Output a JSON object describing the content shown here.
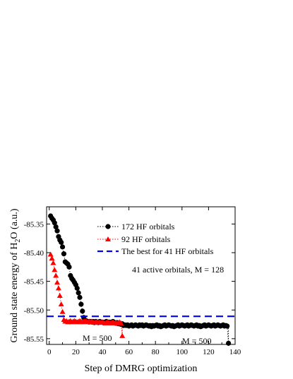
{
  "chart_data": {
    "type": "scatter",
    "xlabel": "Step of DMRG optimization",
    "ylabel_prefix": "Ground state energy of H",
    "ylabel_sub": "2",
    "ylabel_suffix": "O (a.u.)",
    "xlim": [
      -2,
      140
    ],
    "ylim": [
      -85.56,
      -85.32
    ],
    "xticks": [
      0,
      20,
      40,
      60,
      80,
      100,
      120,
      140
    ],
    "yticks": [
      -85.35,
      -85.4,
      -85.45,
      -85.5,
      -85.55
    ],
    "ytick_labels": [
      "-85.35",
      "-85.40",
      "-85.45",
      "-85.50",
      "-85.55"
    ],
    "series": [
      {
        "name": "172 HF orbitals",
        "marker": "circle",
        "color": "#000000",
        "x": [
          1,
          2,
          3,
          4,
          5,
          6,
          7,
          8,
          9,
          10,
          11,
          12,
          13,
          14,
          15,
          16,
          17,
          18,
          19,
          20,
          21,
          22,
          23,
          24,
          25,
          26,
          27,
          28,
          29,
          30,
          31,
          32,
          33,
          34,
          35,
          36,
          37,
          38,
          39,
          40,
          41,
          42,
          43,
          44,
          45,
          46,
          47,
          48,
          49,
          50,
          51,
          52,
          53,
          54,
          55,
          56,
          57,
          58,
          59,
          60,
          61,
          62,
          63,
          64,
          65,
          66,
          67,
          68,
          69,
          70,
          71,
          72,
          73,
          74,
          75,
          76,
          77,
          78,
          79,
          80,
          81,
          82,
          83,
          84,
          85,
          86,
          87,
          88,
          89,
          90,
          91,
          92,
          93,
          94,
          95,
          96,
          97,
          98,
          99,
          100,
          101,
          102,
          103,
          104,
          105,
          106,
          107,
          108,
          109,
          110,
          111,
          112,
          113,
          114,
          115,
          116,
          117,
          118,
          119,
          120,
          121,
          122,
          123,
          124,
          125,
          126,
          127,
          128,
          129,
          130,
          131,
          132,
          133,
          134,
          135
        ],
        "y": [
          -85.336,
          -85.34,
          -85.343,
          -85.348,
          -85.355,
          -85.362,
          -85.372,
          -85.378,
          -85.382,
          -85.39,
          -85.402,
          -85.416,
          -85.418,
          -85.42,
          -85.425,
          -85.44,
          -85.445,
          -85.448,
          -85.452,
          -85.456,
          -85.462,
          -85.47,
          -85.478,
          -85.49,
          -85.502,
          -85.513,
          -85.518,
          -85.519,
          -85.52,
          -85.521,
          -85.52,
          -85.521,
          -85.52,
          -85.522,
          -85.52,
          -85.521,
          -85.522,
          -85.52,
          -85.521,
          -85.521,
          -85.522,
          -85.521,
          -85.52,
          -85.522,
          -85.521,
          -85.522,
          -85.521,
          -85.52,
          -85.522,
          -85.523,
          -85.522,
          -85.524,
          -85.523,
          -85.525,
          -85.524,
          -85.527,
          -85.526,
          -85.527,
          -85.526,
          -85.528,
          -85.527,
          -85.526,
          -85.528,
          -85.527,
          -85.526,
          -85.527,
          -85.528,
          -85.526,
          -85.527,
          -85.526,
          -85.528,
          -85.527,
          -85.526,
          -85.527,
          -85.528,
          -85.527,
          -85.529,
          -85.527,
          -85.528,
          -85.527,
          -85.526,
          -85.528,
          -85.527,
          -85.529,
          -85.528,
          -85.527,
          -85.526,
          -85.528,
          -85.527,
          -85.526,
          -85.527,
          -85.528,
          -85.527,
          -85.529,
          -85.528,
          -85.527,
          -85.526,
          -85.528,
          -85.527,
          -85.526,
          -85.527,
          -85.528,
          -85.527,
          -85.526,
          -85.528,
          -85.527,
          -85.526,
          -85.527,
          -85.528,
          -85.527,
          -85.526,
          -85.528,
          -85.527,
          -85.529,
          -85.528,
          -85.527,
          -85.526,
          -85.528,
          -85.527,
          -85.526,
          -85.527,
          -85.528,
          -85.527,
          -85.526,
          -85.528,
          -85.527,
          -85.526,
          -85.527,
          -85.528,
          -85.527,
          -85.526,
          -85.528,
          -85.527,
          -85.528,
          -85.558
        ]
      },
      {
        "name": "92 HF orbitals",
        "marker": "triangle",
        "color": "#ff0000",
        "x": [
          1,
          2,
          3,
          4,
          5,
          6,
          7,
          8,
          9,
          10,
          11,
          12,
          13,
          14,
          15,
          16,
          17,
          18,
          19,
          20,
          21,
          22,
          23,
          24,
          25,
          26,
          27,
          28,
          29,
          30,
          31,
          32,
          33,
          34,
          35,
          36,
          37,
          38,
          39,
          40,
          41,
          42,
          43,
          44,
          45,
          46,
          47,
          48,
          49,
          50,
          51,
          52,
          53,
          54,
          55
        ],
        "y": [
          -85.403,
          -85.41,
          -85.418,
          -85.43,
          -85.44,
          -85.452,
          -85.462,
          -85.475,
          -85.49,
          -85.503,
          -85.517,
          -85.52,
          -85.519,
          -85.521,
          -85.52,
          -85.519,
          -85.521,
          -85.52,
          -85.519,
          -85.52,
          -85.521,
          -85.52,
          -85.519,
          -85.52,
          -85.521,
          -85.52,
          -85.519,
          -85.52,
          -85.521,
          -85.52,
          -85.521,
          -85.52,
          -85.521,
          -85.522,
          -85.521,
          -85.52,
          -85.522,
          -85.521,
          -85.522,
          -85.521,
          -85.522,
          -85.523,
          -85.522,
          -85.521,
          -85.522,
          -85.523,
          -85.522,
          -85.521,
          -85.523,
          -85.522,
          -85.523,
          -85.522,
          -85.521,
          -85.523,
          -85.545
        ]
      }
    ],
    "reference_line": {
      "name": "The best for 41 HF orbitals",
      "y": -85.511,
      "color": "#0000ff"
    },
    "annotations": {
      "info": "41 active orbitals, M = 128",
      "m_label_red": "M = 500",
      "m_label_black": "M = 500"
    }
  }
}
